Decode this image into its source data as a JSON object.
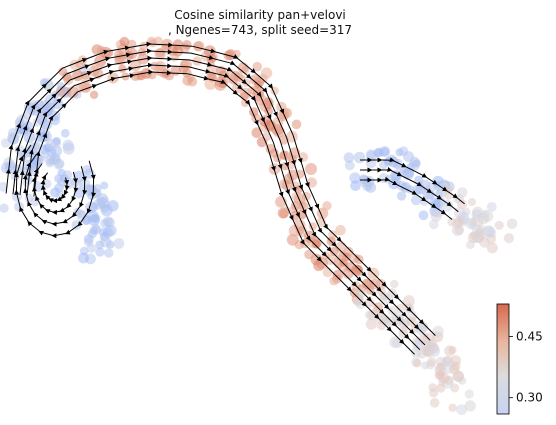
{
  "chart_data": {
    "type": "scatter",
    "title_line1": "Cosine similarity pan+velovi",
    "title_line2": ", Ngenes=743, split seed=317",
    "colorbar": {
      "ticks": [
        0.3,
        0.45
      ],
      "tick_labels": [
        "0.30",
        "0.45"
      ],
      "range": [
        0.26,
        0.53
      ],
      "colormap": "coolwarm",
      "low_color": "#3b4cc0",
      "mid_color": "#dddddd",
      "high_color": "#b40426"
    },
    "axes_visible": false,
    "streamlines": true
  }
}
